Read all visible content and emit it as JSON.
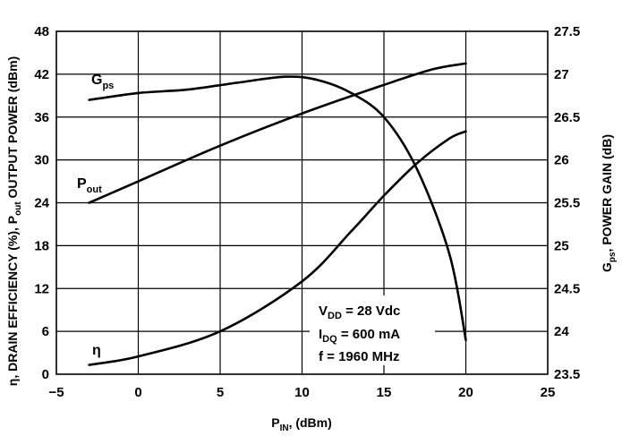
{
  "chart_data": {
    "type": "line",
    "xlabel": "P_IN, (dBm)",
    "ylabel_left": "η, DRAIN EFFICIENCY (%), P_out  OUTPUT POWER (dBm)",
    "ylabel_right": "G_ps,  POWER GAIN (dB)",
    "x_ticks": [
      "−5",
      "0",
      "5",
      "10",
      "15",
      "20",
      "25"
    ],
    "y_left_ticks": [
      "0",
      "6",
      "12",
      "18",
      "24",
      "30",
      "36",
      "42",
      "48"
    ],
    "y_right_ticks": [
      "23.5",
      "24",
      "24.5",
      "25",
      "25.5",
      "26",
      "26.5",
      "27",
      "27.5"
    ],
    "xlim": [
      -5,
      25
    ],
    "ylim_left": [
      0,
      48
    ],
    "ylim_right": [
      23.5,
      27.5
    ],
    "grid": true,
    "series": [
      {
        "name": "Gps",
        "axis": "right",
        "values": [
          [
            -3,
            26.7
          ],
          [
            0,
            26.78
          ],
          [
            3,
            26.82
          ],
          [
            6,
            26.9
          ],
          [
            9,
            26.97
          ],
          [
            11,
            26.93
          ],
          [
            13,
            26.78
          ],
          [
            15,
            26.5
          ],
          [
            17,
            25.9
          ],
          [
            19,
            24.9
          ],
          [
            20,
            23.9
          ]
        ]
      },
      {
        "name": "Pout",
        "axis": "left",
        "values": [
          [
            -3,
            24
          ],
          [
            0,
            27
          ],
          [
            5,
            32
          ],
          [
            10,
            36.5
          ],
          [
            15,
            40.5
          ],
          [
            18,
            42.7
          ],
          [
            20,
            43.5
          ]
        ]
      },
      {
        "name": "η",
        "axis": "left",
        "values": [
          [
            -3,
            1.3
          ],
          [
            0,
            2.5
          ],
          [
            5,
            6
          ],
          [
            10,
            13
          ],
          [
            13,
            20
          ],
          [
            15,
            25
          ],
          [
            17,
            29.5
          ],
          [
            19,
            33
          ],
          [
            20,
            34
          ]
        ]
      }
    ],
    "curve_labels": {
      "gps_main": "G",
      "gps_sub": "ps",
      "pout_main": "P",
      "pout_sub": "out",
      "eta": "η"
    },
    "annotations": {
      "line1_main": "V",
      "line1_sub": "DD",
      "line1_rest": " = 28 Vdc",
      "line2_main": "I",
      "line2_sub": "DQ",
      "line2_rest": " = 600 mA",
      "line3": "f = 1960 MHz"
    },
    "axis_title_parts": {
      "x_main": "P",
      "x_sub": "IN",
      "x_rest": ", (dBm)",
      "yl_a": "η, DRAIN EFFICIENCY (%), P",
      "yl_sub": "out",
      "yl_b": "  OUTPUT POWER (dBm)",
      "yr_main": "G",
      "yr_sub": "ps",
      "yr_rest": ",  POWER GAIN (dB)"
    },
    "colors": {
      "line": "#000000",
      "grid": "#000000",
      "background": "#ffffff"
    }
  }
}
